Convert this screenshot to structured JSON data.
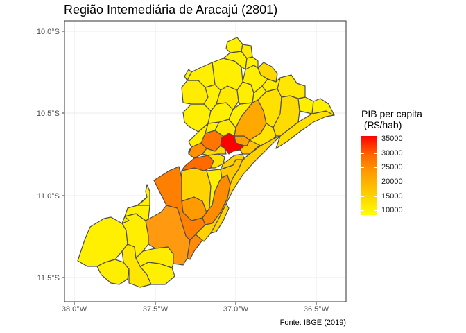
{
  "title": "Região Intemediária de Aracajú (2801)",
  "caption": "Fonte: IBGE (2019)",
  "legend": {
    "title": "PIB per capita\n (R$/hab)",
    "breaks": [
      "35000",
      "30000",
      "25000",
      "20000",
      "15000",
      "10000"
    ]
  },
  "axes": {
    "x_ticks": [
      "38.0°W",
      "37.5°W",
      "37.0°W",
      "36.5°W"
    ],
    "y_ticks": [
      "10.0°S",
      "10.5°S",
      "11.0°S",
      "11.5°S"
    ]
  },
  "colors": {
    "low": "#ffff00",
    "mid_low": "#ffd000",
    "mid": "#ff9a00",
    "mid_high": "#ff6a00",
    "high": "#ff0000",
    "border": "#4d4d4d",
    "grid": "#ebebeb",
    "panel_border": "#333333"
  }
}
